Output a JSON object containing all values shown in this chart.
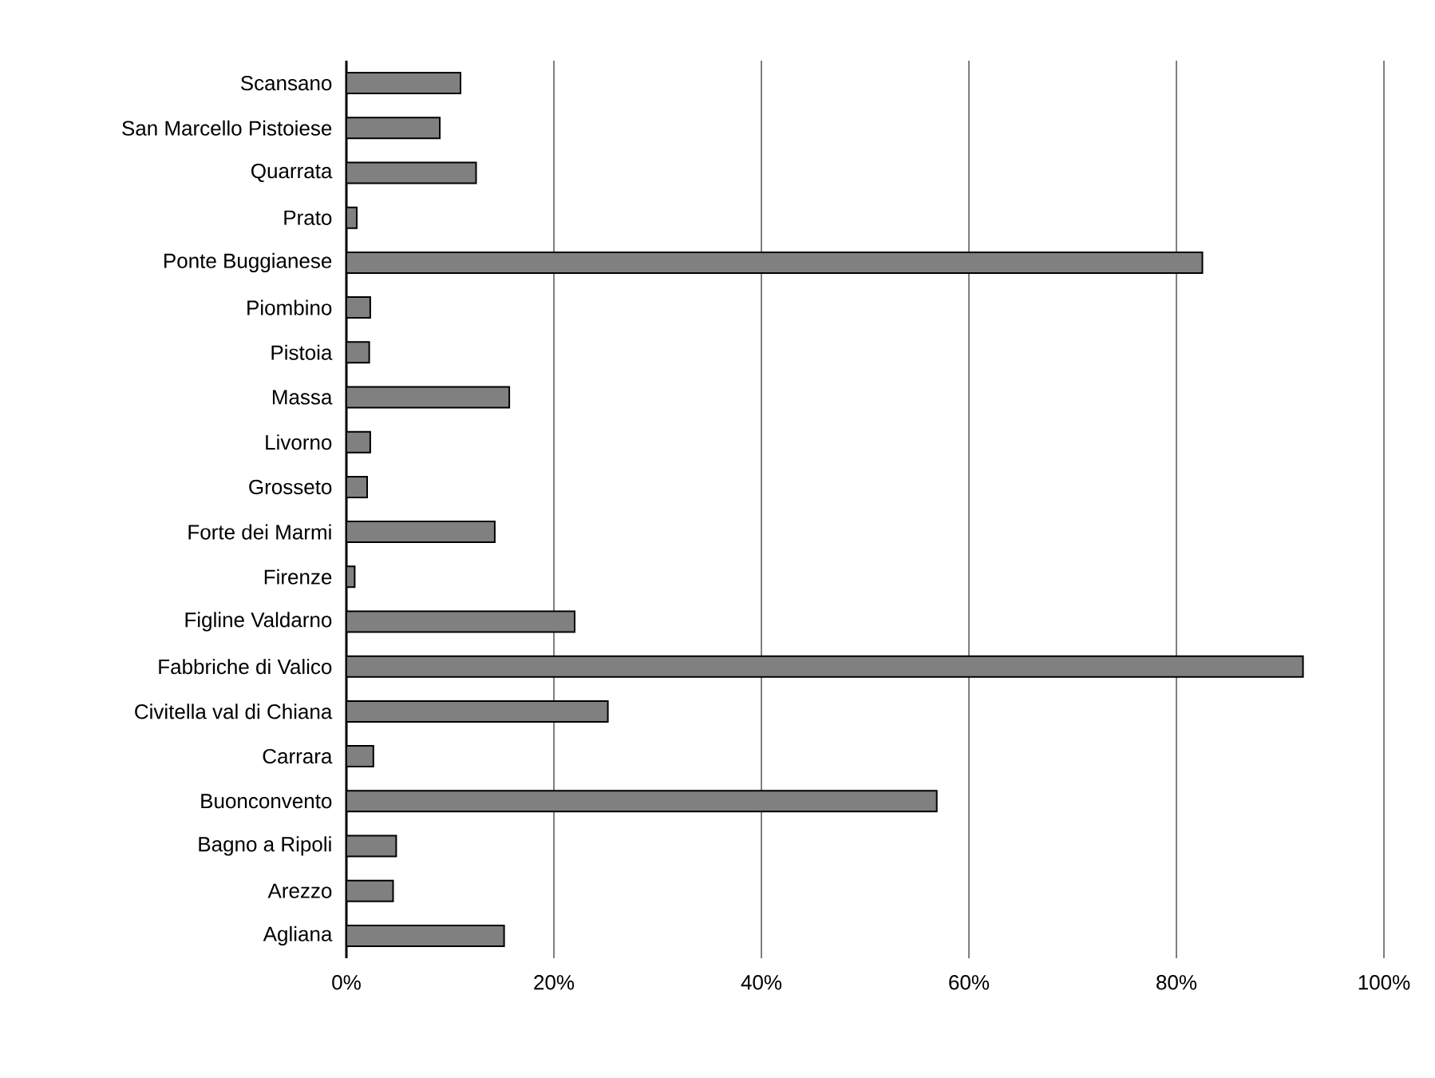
{
  "chart_data": {
    "type": "bar",
    "orientation": "horizontal",
    "categories": [
      "Scansano",
      "San Marcello Pistoiese",
      "Quarrata",
      "Prato",
      "Ponte Buggianese",
      "Piombino",
      "Pistoia",
      "Massa",
      "Livorno",
      "Grosseto",
      "Forte dei Marmi",
      "Firenze",
      "Figline Valdarno",
      "Fabbriche di Valico",
      "Civitella val di Chiana",
      "Carrara",
      "Buonconvento",
      "Bagno a Ripoli",
      "Arezzo",
      "Agliana"
    ],
    "values": [
      11,
      9,
      12.5,
      1,
      82.5,
      2.3,
      2.2,
      15.7,
      2.3,
      2,
      14.3,
      0.8,
      22,
      92.2,
      25.2,
      2.6,
      56.9,
      4.8,
      4.5,
      15.2
    ],
    "color": "#808080",
    "xlim": [
      0,
      100
    ],
    "xticks": [
      {
        "value": 0,
        "label": "0%"
      },
      {
        "value": 20,
        "label": "20%"
      },
      {
        "value": 40,
        "label": "40%"
      },
      {
        "value": 60,
        "label": "60%"
      },
      {
        "value": 80,
        "label": "80%"
      },
      {
        "value": 100,
        "label": "100%"
      }
    ],
    "grid": "x"
  }
}
